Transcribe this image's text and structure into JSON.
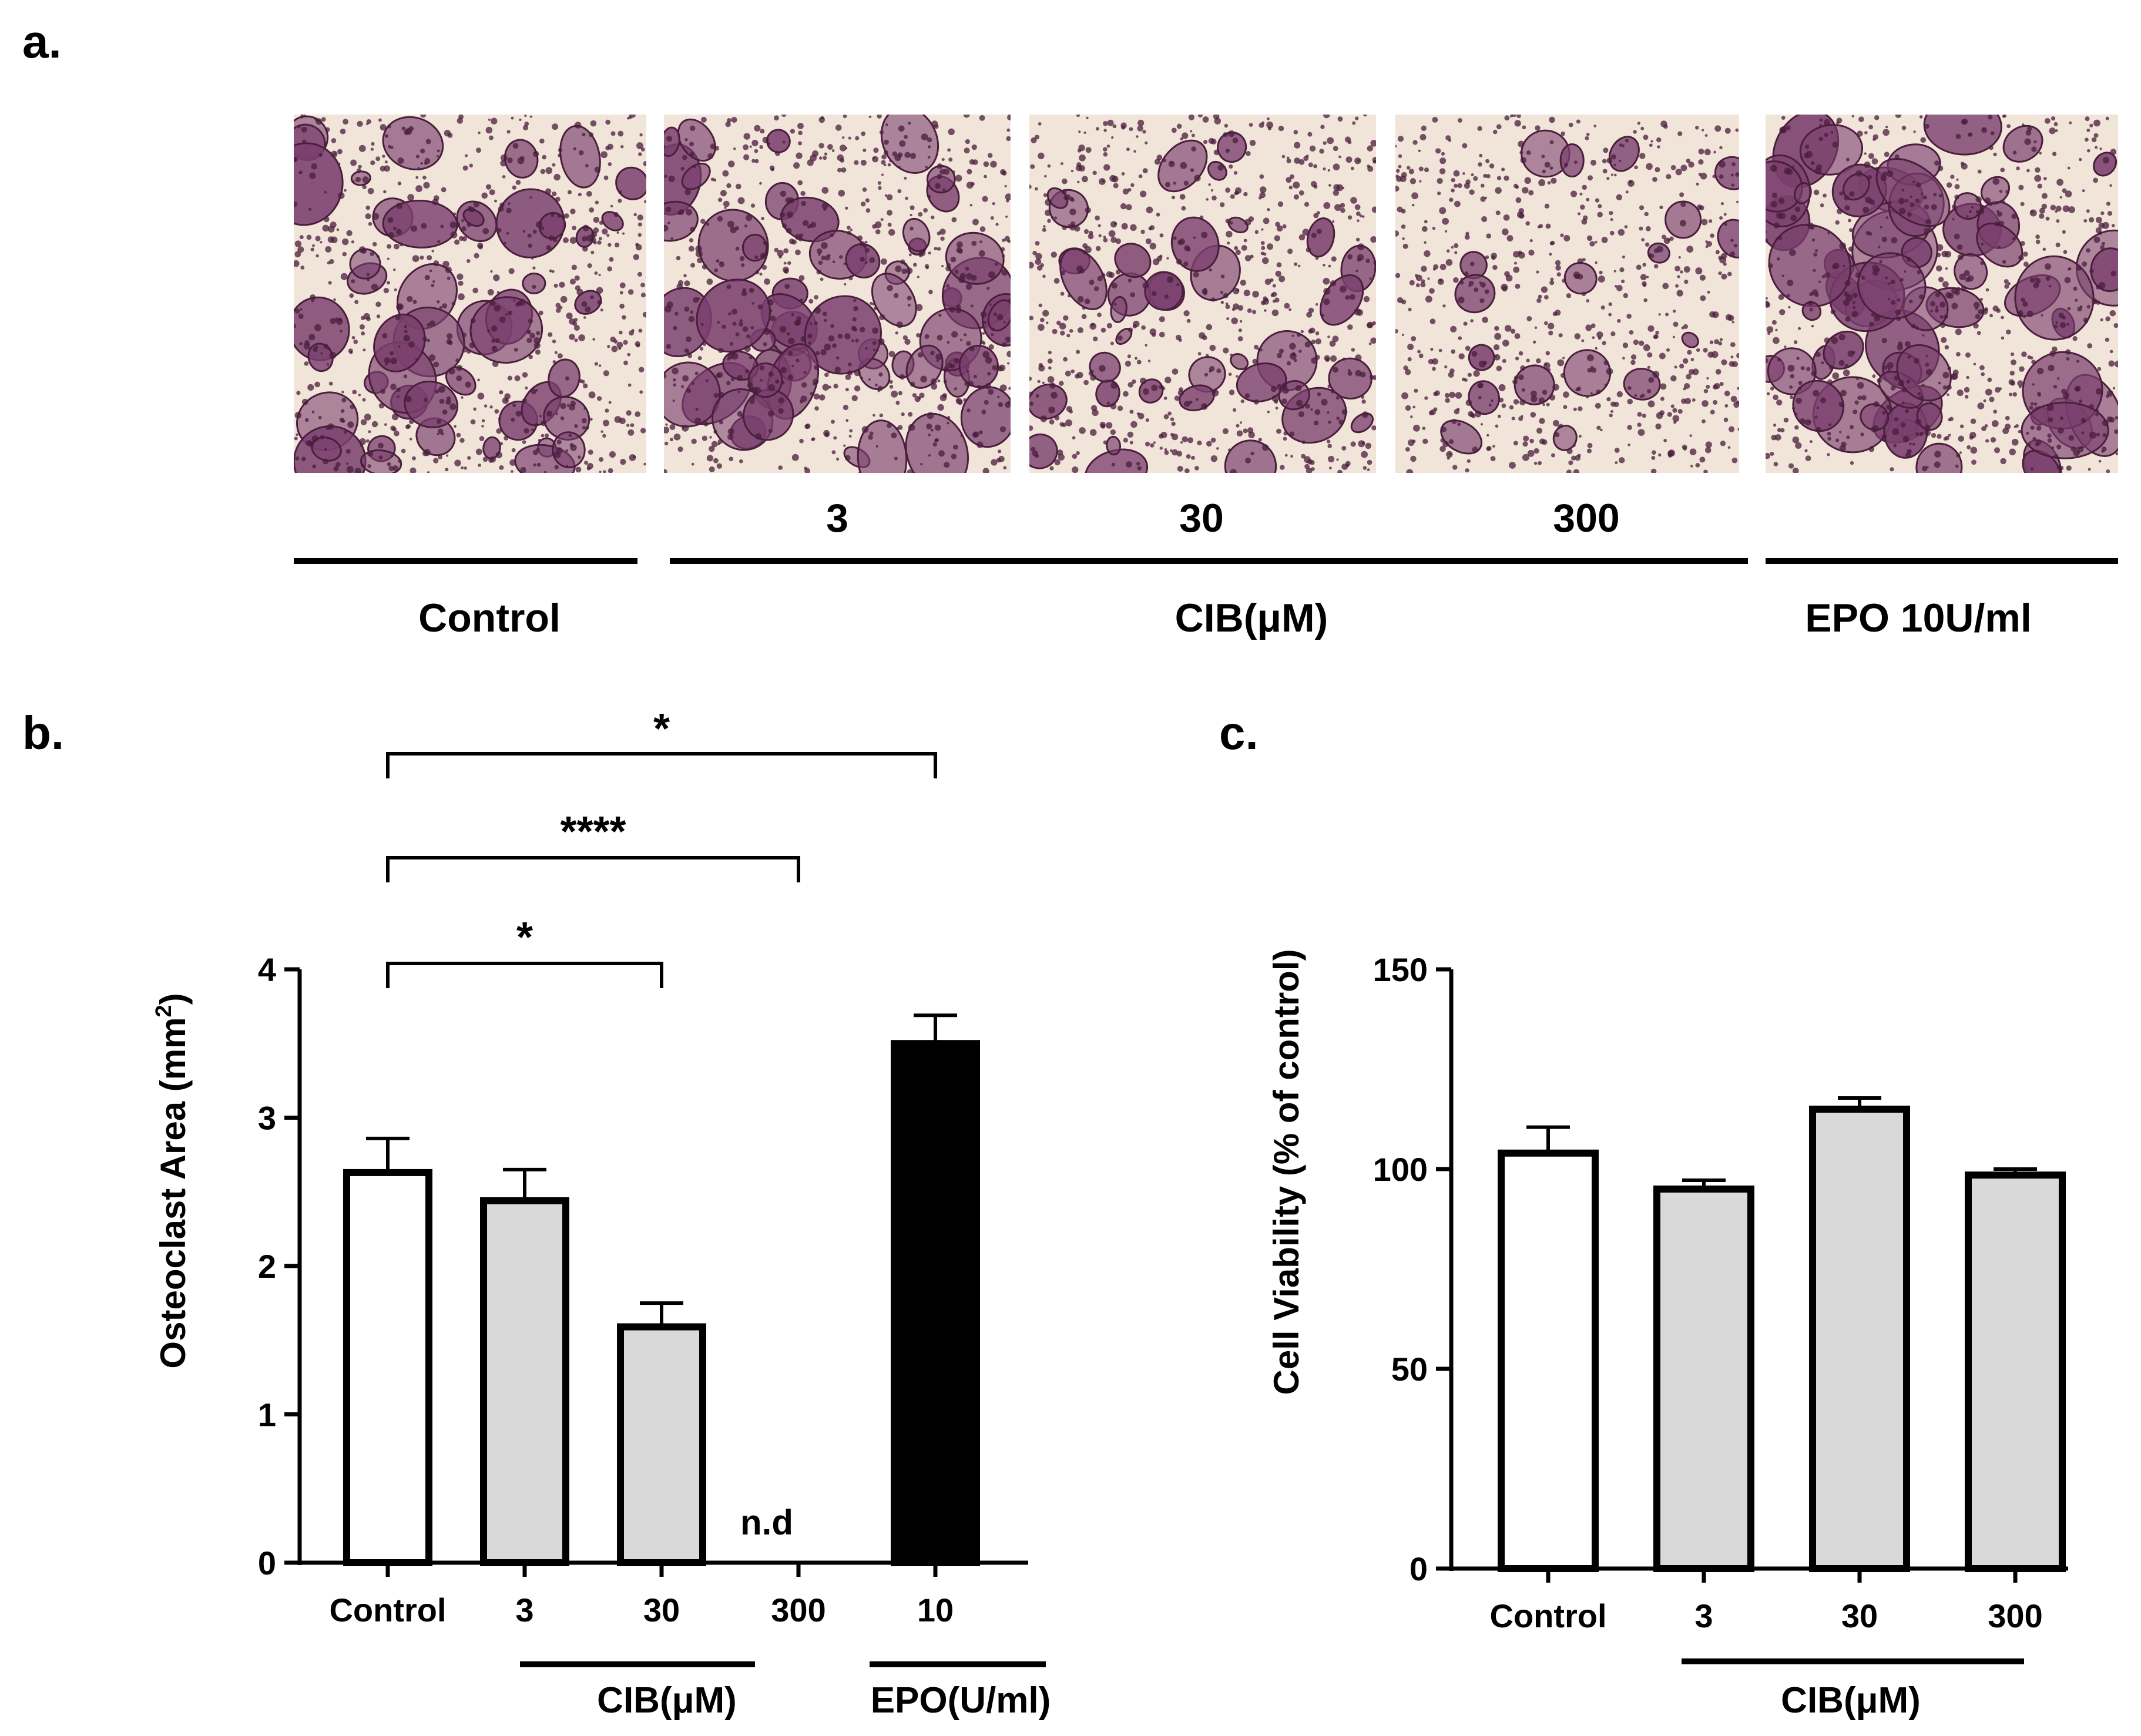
{
  "panel_a": {
    "label": "a.",
    "images": [
      {
        "id": "control",
        "density": 0.75,
        "seed": 11
      },
      {
        "id": "cib-3",
        "density": 0.85,
        "seed": 23
      },
      {
        "id": "cib-30",
        "density": 0.55,
        "seed": 37
      },
      {
        "id": "cib-300",
        "density": 0.22,
        "seed": 41
      },
      {
        "id": "epo-10",
        "density": 1.0,
        "seed": 53
      }
    ],
    "dose_labels": [
      "3",
      "30",
      "300"
    ],
    "group_labels": {
      "control": "Control",
      "cib": "CIB(μM)",
      "epo": "EPO 10U/ml"
    },
    "colors": {
      "stain": "#7a3f6e",
      "dark_stain": "#4a1e3c",
      "background": "#f1e4d8"
    }
  },
  "chart_data": [
    {
      "panel_label": "b.",
      "type": "bar",
      "categories": [
        "Control",
        "3",
        "30",
        "300",
        "10"
      ],
      "values": [
        2.63,
        2.44,
        1.59,
        0,
        3.5
      ],
      "errors": [
        0.23,
        0.21,
        0.16,
        0,
        0.19
      ],
      "bar_colors": [
        "#ffffff",
        "#d9d9d9",
        "#d9d9d9",
        "#d9d9d9",
        "#000000"
      ],
      "ylabel": "Osteoclast Area (mm",
      "ylabel_sup": "2",
      "ylabel_close": ")",
      "ylim": [
        0,
        4
      ],
      "yticks": [
        "0",
        "1",
        "2",
        "3",
        "4"
      ],
      "annotation_nd": "n.d",
      "group_labels": {
        "cib": "CIB(μM)",
        "epo": "EPO(U/ml)"
      },
      "significance": [
        {
          "from": 0,
          "to": 2,
          "label": "*"
        },
        {
          "from": 0,
          "to": 3,
          "label": "****"
        },
        {
          "from": 0,
          "to": 4,
          "label": "*"
        }
      ]
    },
    {
      "panel_label": "c.",
      "type": "bar",
      "categories": [
        "Control",
        "3",
        "30",
        "300"
      ],
      "values": [
        104,
        95,
        115,
        98.5
      ],
      "errors": [
        6.5,
        2.2,
        2.8,
        1.5
      ],
      "bar_colors": [
        "#ffffff",
        "#d9d9d9",
        "#d9d9d9",
        "#d9d9d9"
      ],
      "ylabel": "Cell Viability (% of control)",
      "ylim": [
        0,
        150
      ],
      "yticks": [
        "0",
        "50",
        "100",
        "150"
      ],
      "group_labels": {
        "cib": "CIB(μM)"
      }
    }
  ]
}
